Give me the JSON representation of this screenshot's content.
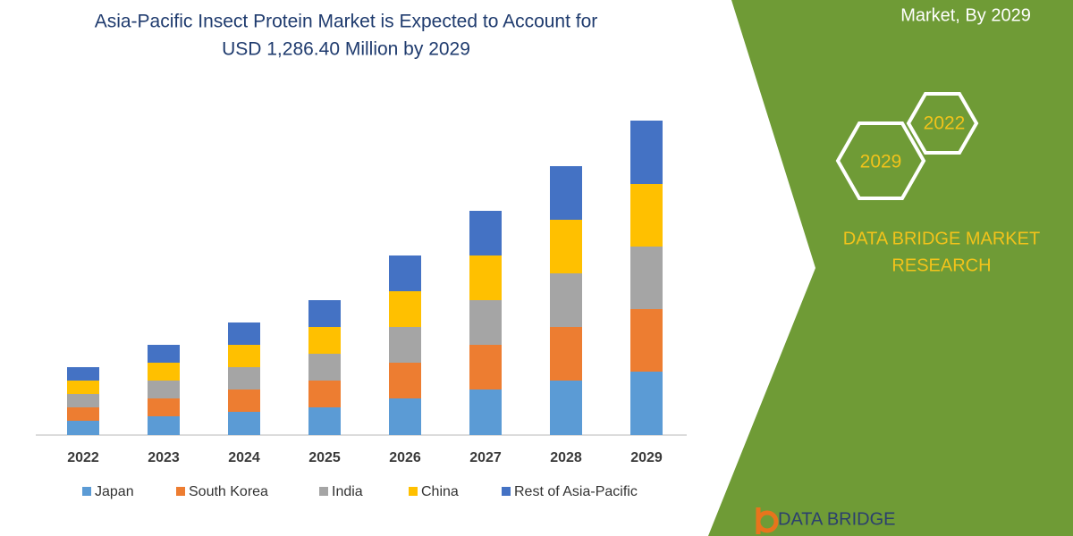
{
  "chart_data": {
    "type": "stacked-bar",
    "title": [
      "Asia-Pacific Insect Protein Market is Expected to Account for",
      "USD 1,286.40 Million by 2029"
    ],
    "categories": [
      "2022",
      "2023",
      "2024",
      "2025",
      "2026",
      "2027",
      "2028",
      "2029"
    ],
    "series": [
      {
        "name": "Japan",
        "color": "#5b9bd5",
        "values": [
          16,
          21,
          26,
          31,
          41,
          51,
          61,
          71
        ]
      },
      {
        "name": "South Korea",
        "color": "#ed7d31",
        "values": [
          15,
          20,
          25,
          30,
          40,
          50,
          60,
          70
        ]
      },
      {
        "name": "India",
        "color": "#a5a5a5",
        "values": [
          15,
          20,
          25,
          30,
          40,
          50,
          60,
          70
        ]
      },
      {
        "name": "China",
        "color": "#ffc000",
        "values": [
          15,
          20,
          25,
          30,
          40,
          50,
          60,
          70
        ]
      },
      {
        "name": "Rest of Asia-Pacific",
        "color": "#4472c4",
        "values": [
          15,
          20,
          25,
          30,
          40,
          50,
          60,
          71
        ]
      }
    ],
    "legend": "bottom"
  },
  "side_panel": {
    "heading": "Market, By 2029",
    "hex_labels": [
      "2022",
      "2029"
    ],
    "brand": [
      "DATA BRIDGE MARKET",
      "RESEARCH"
    ],
    "logo_text": "DATA BRIDGE"
  }
}
